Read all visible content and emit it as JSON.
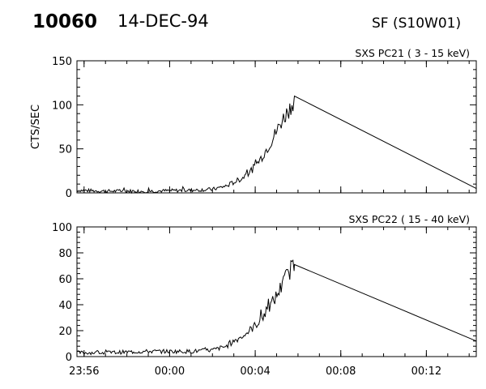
{
  "header": {
    "event_id": "10060",
    "date": "14-DEC-94",
    "location": "SF (S10W01)"
  },
  "chart_data": [
    {
      "type": "line",
      "title": "SXS PC21  (  3 - 15 keV)",
      "ylabel": "CTS/SEC",
      "xlabel": "",
      "ylim": [
        0,
        150
      ],
      "yticks": [
        0,
        50,
        100,
        150
      ],
      "xlim": [
        "23:55:40",
        "00:14:20"
      ],
      "xticks": [
        "23:56",
        "00:00",
        "00:04",
        "00:08",
        "00:12"
      ],
      "show_xtick_labels": false,
      "grid": false,
      "series": [
        {
          "x": [
            "23:55:40",
            "23:57:00",
            "23:59:00",
            "00:01:00",
            "00:02:00",
            "00:02:40",
            "00:03:00",
            "00:03:20",
            "00:03:40",
            "00:04:00",
            "00:04:20",
            "00:04:40",
            "00:05:00",
            "00:05:15",
            "00:05:30",
            "00:05:45",
            "00:05:50",
            "00:14:20"
          ],
          "values": [
            3,
            2,
            2,
            3,
            4,
            8,
            12,
            16,
            22,
            30,
            42,
            55,
            70,
            82,
            92,
            102,
            110,
            5
          ]
        }
      ]
    },
    {
      "type": "line",
      "title": "SXS PC22  ( 15 - 40 keV)",
      "ylabel": "",
      "xlabel": "",
      "ylim": [
        0,
        100
      ],
      "yticks": [
        0,
        20,
        40,
        60,
        80,
        100
      ],
      "xlim": [
        "23:55:40",
        "00:14:20"
      ],
      "xticks": [
        "23:56",
        "00:00",
        "00:04",
        "00:08",
        "00:12"
      ],
      "show_xtick_labels": true,
      "grid": false,
      "series": [
        {
          "x": [
            "23:55:40",
            "23:57:00",
            "23:59:00",
            "00:01:00",
            "00:02:00",
            "00:02:40",
            "00:03:00",
            "00:03:20",
            "00:03:40",
            "00:04:00",
            "00:04:20",
            "00:04:40",
            "00:05:00",
            "00:05:15",
            "00:05:30",
            "00:05:45",
            "00:05:50",
            "00:14:20"
          ],
          "values": [
            3,
            3,
            4,
            4,
            5,
            8,
            12,
            15,
            19,
            24,
            30,
            38,
            47,
            55,
            63,
            70,
            71,
            12
          ]
        }
      ]
    }
  ]
}
